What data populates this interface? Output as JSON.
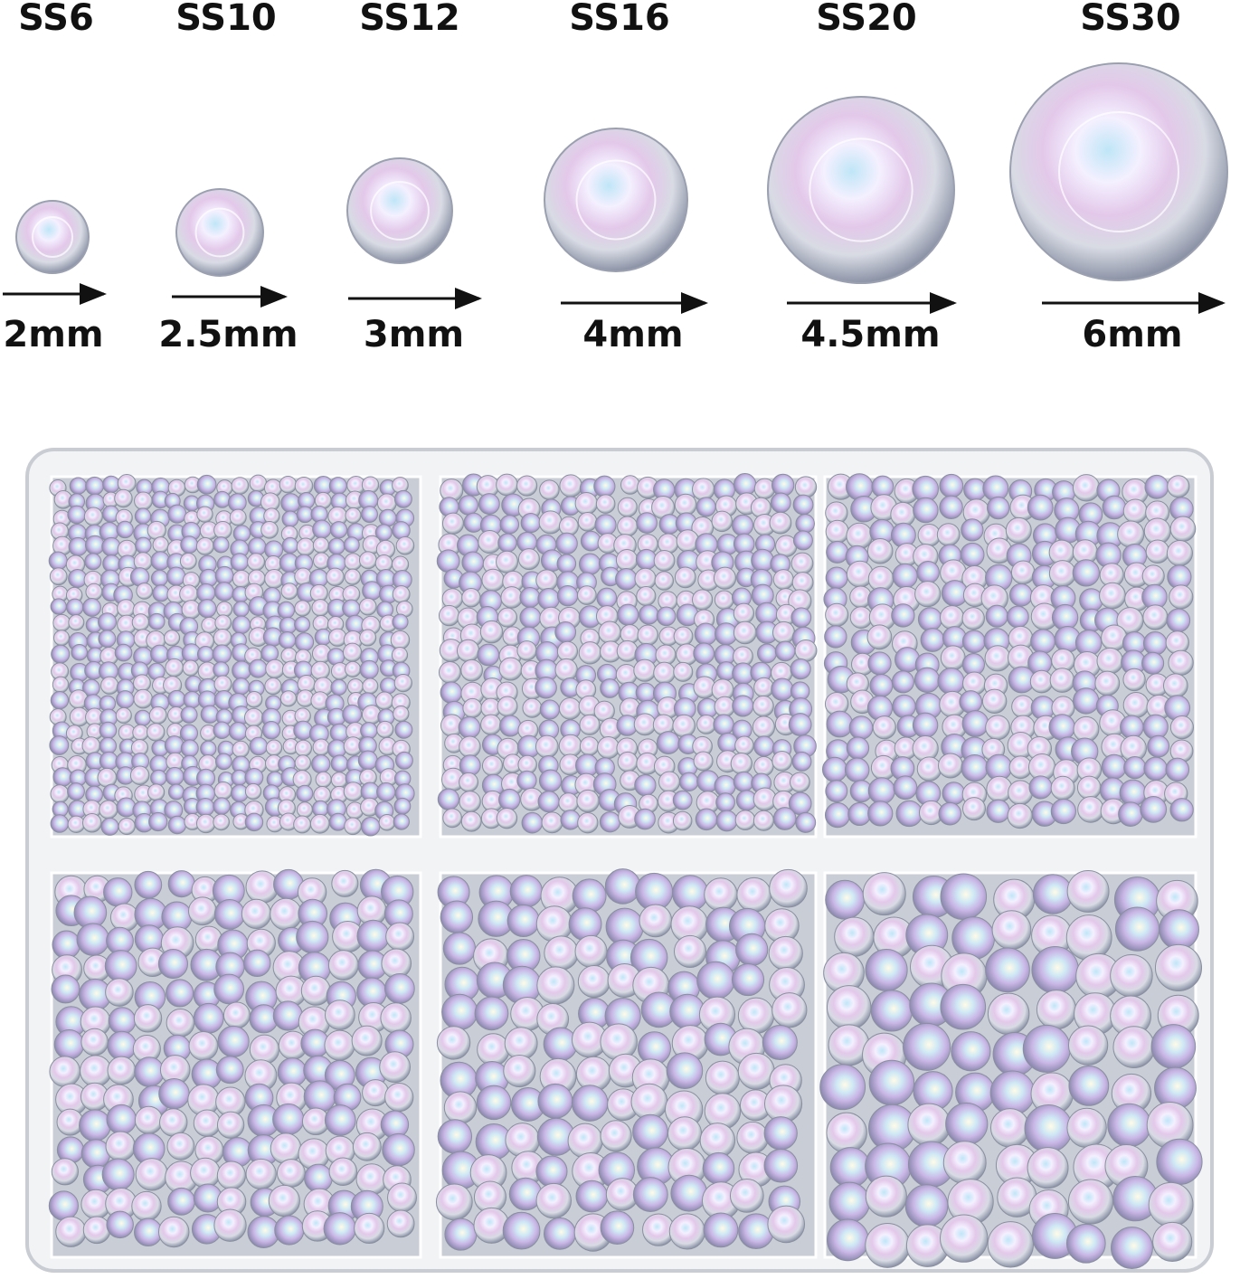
{
  "sizes": [
    {
      "label": "SS6",
      "diameter": "2mm"
    },
    {
      "label": "SS10",
      "diameter": "2.5mm"
    },
    {
      "label": "SS12",
      "diameter": "3mm"
    },
    {
      "label": "SS16",
      "diameter": "4mm"
    },
    {
      "label": "SS20",
      "diameter": "4.5mm"
    },
    {
      "label": "SS30",
      "diameter": "6mm"
    }
  ]
}
